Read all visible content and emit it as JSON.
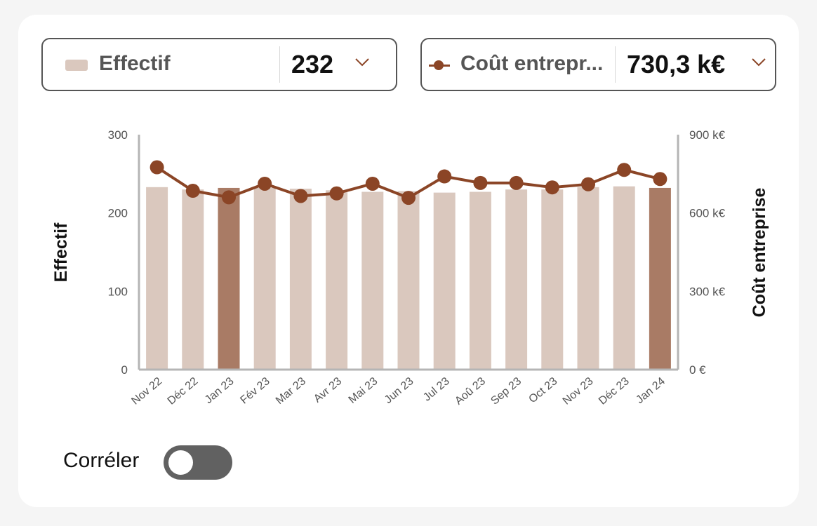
{
  "selectors": {
    "left": {
      "label": "Effectif",
      "value": "232"
    },
    "right": {
      "label": "Coût entrepr...",
      "value": "730,3 k€"
    }
  },
  "colors": {
    "bar": "#dac8be",
    "bar_highlight": "#a97b65",
    "line": "#8b4526",
    "axis": "#b5b5b5"
  },
  "toggle": {
    "label": "Corréler",
    "on": false
  },
  "chart_data": {
    "type": "bar+line",
    "categories": [
      "Nov 22",
      "Déc 22",
      "Jan 23",
      "Fév 23",
      "Mar 23",
      "Avr 23",
      "Mai 23",
      "Jun 23",
      "Jul 23",
      "Aoû 23",
      "Sep 23",
      "Oct 23",
      "Nov 23",
      "Déc 23",
      "Jan 24"
    ],
    "series": [
      {
        "name": "Effectif",
        "type": "bar",
        "axis": "left",
        "values": [
          233,
          230,
          232,
          232,
          231,
          229,
          227,
          228,
          226,
          227,
          230,
          230,
          233,
          234,
          232
        ],
        "highlight": [
          "Jan 23",
          "Jan 24"
        ]
      },
      {
        "name": "Coût entreprise",
        "type": "line",
        "axis": "right",
        "values": [
          775,
          685,
          660,
          712,
          665,
          675,
          712,
          658,
          740,
          715,
          715,
          698,
          710,
          765,
          730
        ]
      }
    ],
    "ylabel": "Effectif",
    "y2label": "Coût entreprise",
    "ylim": [
      0,
      300
    ],
    "y2lim": [
      0,
      900
    ],
    "yticks": [
      "0",
      "100",
      "200",
      "300"
    ],
    "y2ticks": [
      "0 €",
      "300 k€",
      "600 k€",
      "900 k€"
    ]
  }
}
